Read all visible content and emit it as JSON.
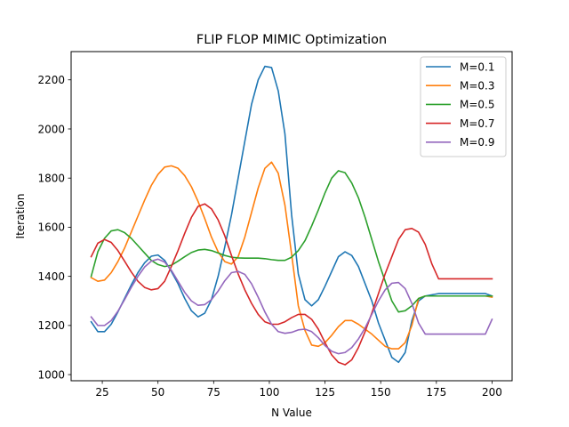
{
  "chart_data": {
    "type": "line",
    "title": "FLIP FLOP MIMIC Optimization",
    "xlabel": "N Value",
    "ylabel": "Iteration",
    "xlim": [
      11,
      209
    ],
    "ylim": [
      975,
      2315
    ],
    "xticks": [
      25,
      50,
      75,
      100,
      125,
      150,
      175,
      200
    ],
    "yticks": [
      1000,
      1200,
      1400,
      1600,
      1800,
      2000,
      2200
    ],
    "grid": false,
    "legend_position": "top-right",
    "x": [
      20,
      23,
      26,
      29,
      32,
      35,
      38,
      41,
      44,
      47,
      50,
      53,
      56,
      59,
      62,
      65,
      68,
      71,
      74,
      77,
      80,
      83,
      86,
      89,
      92,
      95,
      98,
      101,
      104,
      107,
      110,
      113,
      116,
      119,
      122,
      125,
      128,
      131,
      134,
      137,
      140,
      143,
      146,
      149,
      152,
      155,
      158,
      161,
      164,
      167,
      170,
      173,
      176,
      179,
      182,
      185,
      188,
      191,
      194,
      197,
      200
    ],
    "series": [
      {
        "name": "M=0.1",
        "color": "#1f77b4",
        "values": [
          1215,
          1175,
          1175,
          1205,
          1255,
          1310,
          1365,
          1415,
          1455,
          1482,
          1487,
          1465,
          1420,
          1370,
          1310,
          1260,
          1235,
          1250,
          1305,
          1400,
          1520,
          1650,
          1800,
          1950,
          2100,
          2200,
          2255,
          2250,
          2155,
          1980,
          1650,
          1410,
          1305,
          1280,
          1305,
          1360,
          1420,
          1480,
          1500,
          1485,
          1440,
          1370,
          1300,
          1210,
          1140,
          1070,
          1050,
          1090,
          1220,
          1300,
          1320,
          1325,
          1330,
          1330,
          1330,
          1330,
          1330,
          1330,
          1330,
          1330,
          1320
        ]
      },
      {
        "name": "M=0.3",
        "color": "#ff7f0e",
        "values": [
          1395,
          1380,
          1385,
          1415,
          1460,
          1515,
          1580,
          1645,
          1710,
          1770,
          1815,
          1845,
          1850,
          1840,
          1810,
          1765,
          1705,
          1635,
          1560,
          1500,
          1460,
          1450,
          1480,
          1560,
          1660,
          1760,
          1840,
          1865,
          1820,
          1690,
          1490,
          1280,
          1180,
          1120,
          1115,
          1130,
          1160,
          1195,
          1220,
          1220,
          1205,
          1185,
          1165,
          1140,
          1115,
          1105,
          1105,
          1130,
          1200,
          1310,
          1320,
          1320,
          1320,
          1320,
          1320,
          1320,
          1320,
          1320,
          1320,
          1320,
          1315
        ]
      },
      {
        "name": "M=0.5",
        "color": "#2ca02c",
        "values": [
          1400,
          1500,
          1555,
          1585,
          1590,
          1578,
          1555,
          1525,
          1495,
          1465,
          1448,
          1440,
          1445,
          1462,
          1480,
          1497,
          1507,
          1510,
          1505,
          1495,
          1485,
          1478,
          1475,
          1474,
          1474,
          1474,
          1472,
          1468,
          1465,
          1465,
          1478,
          1505,
          1545,
          1605,
          1670,
          1740,
          1800,
          1830,
          1822,
          1780,
          1720,
          1640,
          1550,
          1460,
          1380,
          1300,
          1255,
          1260,
          1280,
          1310,
          1320,
          1320,
          1320,
          1320,
          1320,
          1320,
          1320,
          1320,
          1320,
          1320,
          1320
        ]
      },
      {
        "name": "M=0.7",
        "color": "#d62728",
        "values": [
          1480,
          1535,
          1550,
          1538,
          1505,
          1462,
          1418,
          1380,
          1355,
          1345,
          1350,
          1380,
          1440,
          1505,
          1575,
          1640,
          1685,
          1695,
          1675,
          1630,
          1565,
          1485,
          1410,
          1345,
          1290,
          1245,
          1215,
          1205,
          1205,
          1215,
          1232,
          1245,
          1245,
          1225,
          1185,
          1130,
          1080,
          1050,
          1040,
          1060,
          1110,
          1175,
          1250,
          1330,
          1410,
          1480,
          1550,
          1590,
          1595,
          1580,
          1530,
          1450,
          1390,
          1390,
          1390,
          1390,
          1390,
          1390,
          1390,
          1390,
          1390
        ]
      },
      {
        "name": "M=0.9",
        "color": "#9467bd",
        "values": [
          1235,
          1200,
          1200,
          1220,
          1258,
          1305,
          1355,
          1400,
          1438,
          1462,
          1470,
          1458,
          1425,
          1380,
          1335,
          1300,
          1282,
          1285,
          1305,
          1340,
          1382,
          1415,
          1420,
          1408,
          1370,
          1315,
          1255,
          1205,
          1175,
          1168,
          1172,
          1182,
          1185,
          1175,
          1150,
          1118,
          1095,
          1085,
          1090,
          1110,
          1145,
          1190,
          1245,
          1300,
          1345,
          1372,
          1375,
          1350,
          1290,
          1210,
          1165,
          1165,
          1165,
          1165,
          1165,
          1165,
          1165,
          1165,
          1165,
          1165,
          1225
        ]
      }
    ]
  }
}
